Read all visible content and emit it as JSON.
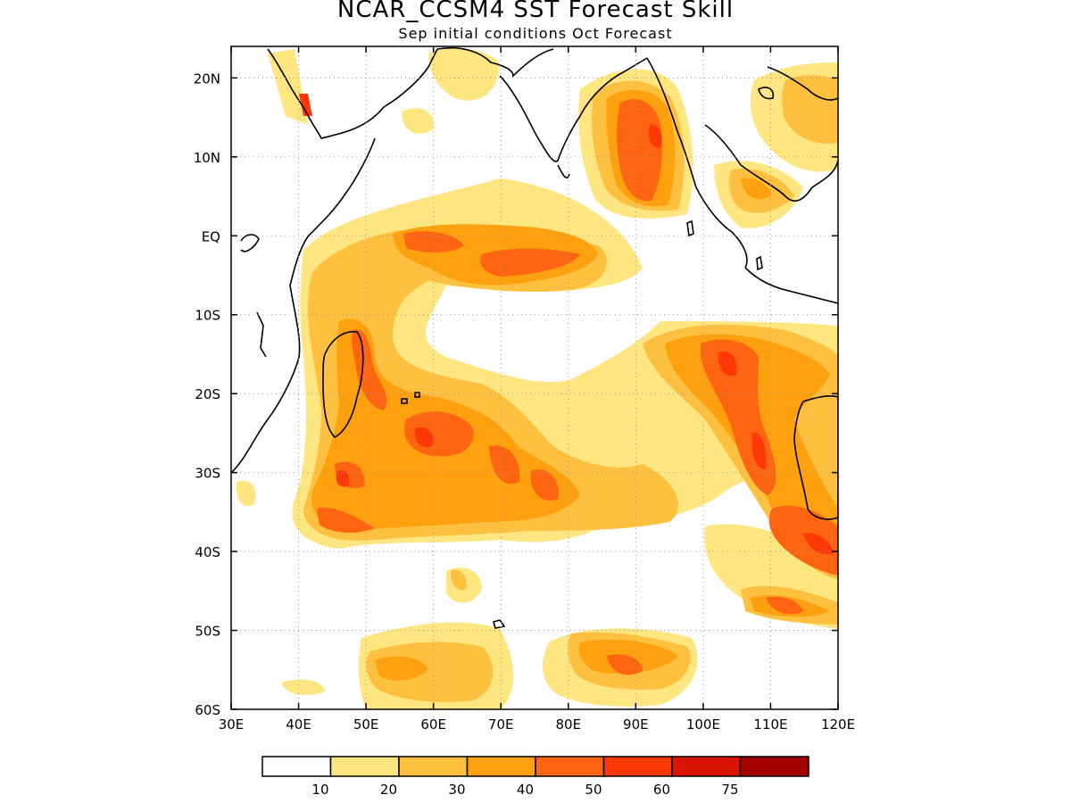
{
  "title": "NCAR_CCSM4 SST Forecast Skill",
  "subtitle": "Sep initial conditions  Oct Forecast",
  "map": {
    "lon_range": [
      30,
      120
    ],
    "lat_range": [
      -60,
      24
    ],
    "lon_ticks": [
      {
        "value": 30,
        "label": "30E"
      },
      {
        "value": 40,
        "label": "40E"
      },
      {
        "value": 50,
        "label": "50E"
      },
      {
        "value": 60,
        "label": "60E"
      },
      {
        "value": 70,
        "label": "70E"
      },
      {
        "value": 80,
        "label": "80E"
      },
      {
        "value": 90,
        "label": "90E"
      },
      {
        "value": 100,
        "label": "100E"
      },
      {
        "value": 110,
        "label": "110E"
      },
      {
        "value": 120,
        "label": "120E"
      }
    ],
    "lat_ticks": [
      {
        "value": 20,
        "label": "20N"
      },
      {
        "value": 10,
        "label": "10N"
      },
      {
        "value": 0,
        "label": "EQ"
      },
      {
        "value": -10,
        "label": "10S"
      },
      {
        "value": -20,
        "label": "20S"
      },
      {
        "value": -30,
        "label": "30S"
      },
      {
        "value": -40,
        "label": "40S"
      },
      {
        "value": -50,
        "label": "50S"
      },
      {
        "value": -60,
        "label": "60S"
      }
    ],
    "gridlines": "dotted"
  },
  "colorbar": {
    "colors": [
      "#ffffff",
      "#ffe680",
      "#ffbf3f",
      "#ffa10f",
      "#ff6410",
      "#ff3808",
      "#db1400",
      "#a40000"
    ],
    "labels": [
      "10",
      "20",
      "30",
      "40",
      "50",
      "60",
      "75"
    ]
  }
}
